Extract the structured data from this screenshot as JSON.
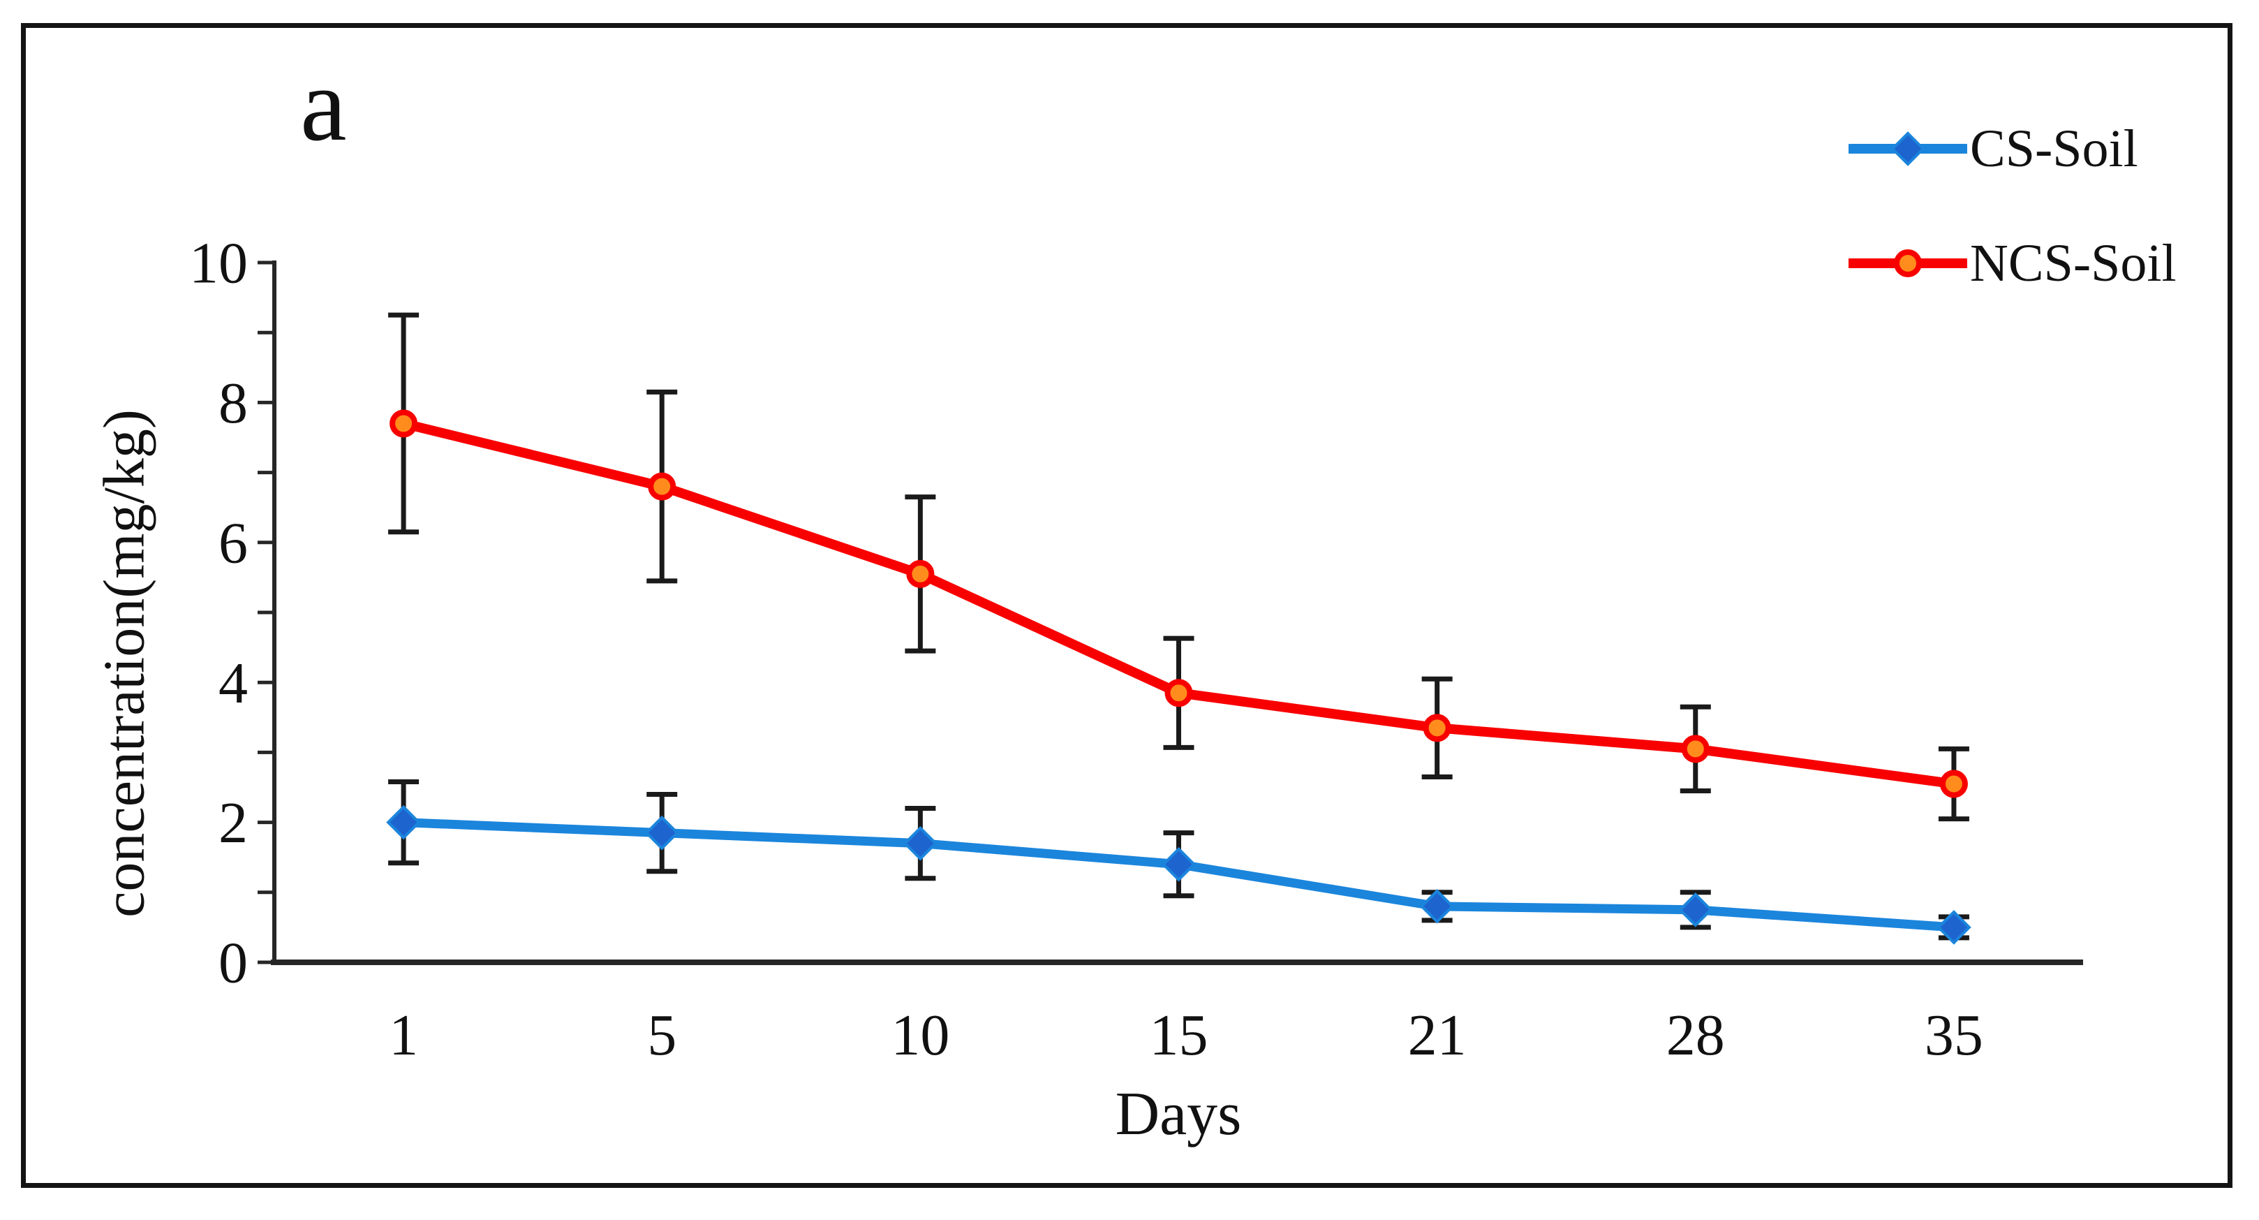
{
  "panel_label": "a",
  "figure": {
    "background": "#ffffff",
    "border_color": "#141414"
  },
  "chart_data": {
    "type": "line",
    "title": "",
    "xlabel": "Days",
    "ylabel": "concentration(mg/kg)",
    "categories": [
      "1",
      "5",
      "10",
      "15",
      "21",
      "28",
      "35"
    ],
    "ylim": [
      0,
      10
    ],
    "ytick_labels": [
      "0",
      "2",
      "4",
      "6",
      "8",
      "10"
    ],
    "ytick_minor_step": 1,
    "grid": false,
    "legend_position": "top-right",
    "axis_color": "#262626",
    "error_bar_color": "#1a1a1a",
    "series": [
      {
        "name": "CS-Soil",
        "marker": "diamond",
        "line_color": "#1b85dc",
        "marker_fill": "#1d64cf",
        "marker_stroke": "#1b85dc",
        "values": [
          2.0,
          1.85,
          1.7,
          1.4,
          0.8,
          0.75,
          0.5
        ],
        "errors": [
          0.58,
          0.55,
          0.5,
          0.45,
          0.2,
          0.25,
          0.15
        ]
      },
      {
        "name": "NCS-Soil",
        "marker": "circle",
        "line_color": "#f80000",
        "marker_fill": "#ff8c1c",
        "marker_stroke": "#f80000",
        "values": [
          7.7,
          6.8,
          5.55,
          3.85,
          3.35,
          3.05,
          2.55
        ],
        "errors": [
          1.55,
          1.35,
          1.1,
          0.78,
          0.7,
          0.6,
          0.5
        ]
      }
    ]
  }
}
